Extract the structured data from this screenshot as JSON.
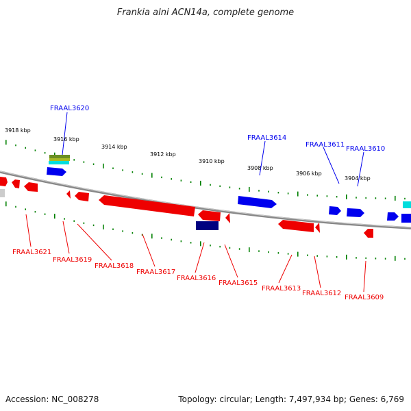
{
  "title": "Frankia alni ACN14a, complete genome",
  "accession": "Accession: NC_008278",
  "topology": "Topology: circular; Length: 7,497,934 bp; Genes: 6,769",
  "colors": {
    "forward_strand": "#0000ee",
    "reverse_strand": "#ee0000",
    "scale_ticks": "#008000",
    "backbone": "#888888",
    "dark_gene": "#000080",
    "cyan_gene": "#00dddd",
    "olive_gene": "#6b8e23"
  },
  "scale": {
    "ticks": [
      "3918 kbp",
      "3916 kbp",
      "3914 kbp",
      "3912 kbp",
      "3910 kbp",
      "3908 kbp",
      "3906 kbp",
      "3904 kbp"
    ]
  },
  "forward_genes": [
    "FRAAL3620",
    "FRAAL3614",
    "FRAAL3611",
    "FRAAL3610"
  ],
  "reverse_genes": [
    "FRAAL3621",
    "FRAAL3619",
    "FRAAL3618",
    "FRAAL3617",
    "FRAAL3616",
    "FRAAL3615",
    "FRAAL3613",
    "FRAAL3612",
    "FRAAL3609"
  ]
}
